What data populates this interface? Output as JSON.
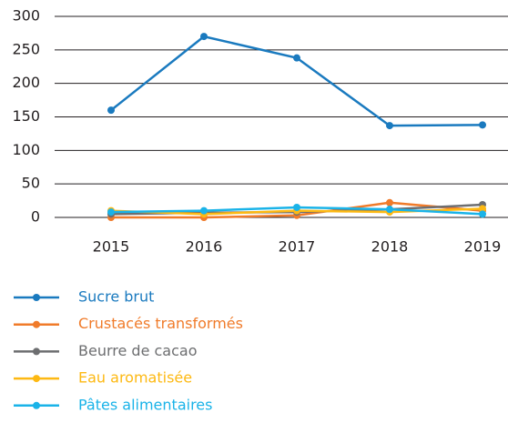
{
  "chart_data": {
    "type": "line",
    "categories": [
      "2015",
      "2016",
      "2017",
      "2018",
      "2019"
    ],
    "series": [
      {
        "name": "Sucre brut",
        "color": "#1a7abf",
        "values": [
          160,
          270,
          238,
          137,
          138
        ]
      },
      {
        "name": "Crustacés transformés",
        "color": "#f07b2a",
        "values": [
          0,
          0,
          3,
          22,
          10
        ]
      },
      {
        "name": "Beurre de cacao",
        "color": "#6d6e70",
        "values": [
          5,
          7,
          8,
          12,
          19
        ]
      },
      {
        "name": "Eau aromatisée",
        "color": "#fdb913",
        "values": [
          10,
          5,
          10,
          8,
          13
        ]
      },
      {
        "name": "Pâtes alimentaires",
        "color": "#1ab3e8",
        "values": [
          8,
          10,
          15,
          12,
          5
        ]
      }
    ],
    "ylim": [
      0,
      300
    ],
    "yticks": [
      0,
      50,
      100,
      150,
      200,
      250,
      300
    ],
    "grid": true,
    "legend": "bottom"
  }
}
